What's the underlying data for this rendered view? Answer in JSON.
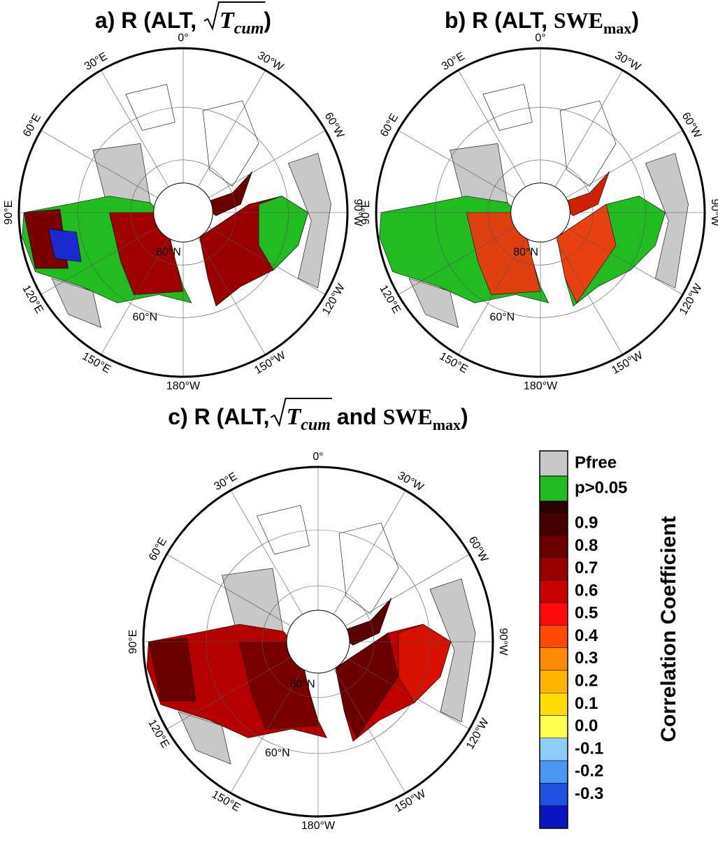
{
  "panels": [
    {
      "title": [
        {
          "text": "a) R (ALT, ",
          "style": "plain",
          "sqrt": false
        },
        {
          "text": "T",
          "style": "math",
          "sqrt": true
        },
        {
          "text": "cum",
          "style": "sub",
          "sqrt": true
        },
        {
          "text": ")",
          "style": "plain",
          "sqrt": false
        }
      ],
      "meridian_labels": [
        "0°",
        "30°W",
        "60°W",
        "90°W",
        "120°W",
        "150°W",
        "180°W",
        "150°E",
        "120°E",
        "90°E",
        "60°E",
        "30°E"
      ],
      "parallel_labels": [
        "80°N",
        "60°N"
      ]
    },
    {
      "title": [
        {
          "text": "b) R (ALT, ",
          "style": "plain",
          "sqrt": false
        },
        {
          "text": "SWE",
          "style": "mathbold",
          "sqrt": false
        },
        {
          "text": "max",
          "style": "subup",
          "sqrt": false
        },
        {
          "text": ")",
          "style": "plain",
          "sqrt": false
        }
      ],
      "meridian_labels": [
        "0°",
        "30°W",
        "60°W",
        "90°W",
        "120°W",
        "150°W",
        "180°W",
        "150°E",
        "120°E",
        "90°E",
        "60°E",
        "30°E"
      ],
      "parallel_labels": [
        "80°N",
        "60°N"
      ]
    },
    {
      "title": [
        {
          "text": "c) R (ALT,",
          "style": "plain",
          "sqrt": false
        },
        {
          "text": "T",
          "style": "math",
          "sqrt": true
        },
        {
          "text": "cum",
          "style": "sub",
          "sqrt": true
        },
        {
          "text": " and ",
          "style": "plain",
          "sqrt": false
        },
        {
          "text": "SWE",
          "style": "mathbold",
          "sqrt": false
        },
        {
          "text": "max",
          "style": "subup",
          "sqrt": false
        },
        {
          "text": ")",
          "style": "plain",
          "sqrt": false
        }
      ],
      "meridian_labels": [
        "0°",
        "30°W",
        "60°W",
        "90°W",
        "120°W",
        "150°W",
        "180°W",
        "150°E",
        "120°E",
        "90°E",
        "60°E",
        "30°E"
      ],
      "parallel_labels": [
        "80°N",
        "60°N"
      ]
    }
  ],
  "legend": {
    "items": [
      {
        "label": "Pfree",
        "color": "#c8c8c8"
      },
      {
        "label": "p>0.05",
        "color": "#22bb22"
      }
    ],
    "scale": {
      "cap_color": "#2a0000",
      "colors": [
        "#450000",
        "#6a0000",
        "#980000",
        "#c80000",
        "#ff0a0a",
        "#ff4a00",
        "#ff8c00",
        "#ffb400",
        "#ffdc00",
        "#ffff50",
        "#8ccdfa",
        "#4a96f0",
        "#2050e0",
        "#0a14c0"
      ],
      "ticks": [
        0.9,
        0.8,
        0.7,
        0.6,
        0.5,
        0.4,
        0.3,
        0.2,
        0.1,
        {
          "value": 0,
          "label": "0.0"
        },
        -0.1,
        -0.2,
        -0.3
      ]
    },
    "title": "Correlation Coefficient"
  }
}
